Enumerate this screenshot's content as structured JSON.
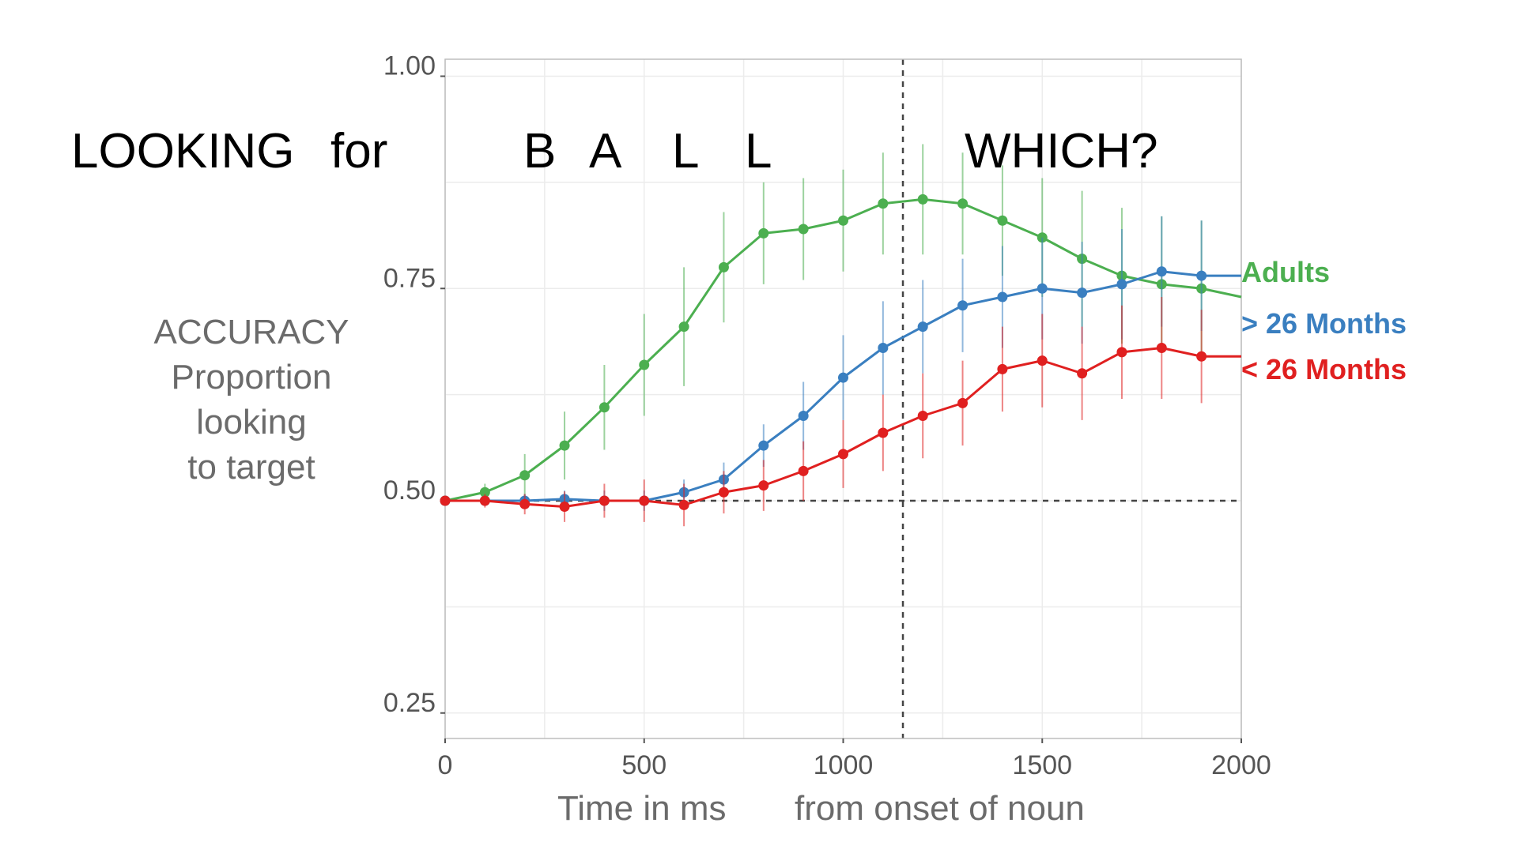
{
  "chart_data": {
    "type": "line",
    "xlim": [
      0,
      2000
    ],
    "ylim": [
      0.22,
      1.02
    ],
    "x_ticks": [
      0,
      500,
      1000,
      1500,
      2000
    ],
    "x_tick_labels": [
      "0",
      "500",
      "1000",
      "1500",
      "2000"
    ],
    "y_ticks": [
      0.25,
      0.5,
      0.75,
      1.0
    ],
    "y_tick_labels": [
      "0.25",
      "0.50",
      "0.75",
      "1.00"
    ],
    "xlabel": [
      "Time in ms",
      "from onset of noun"
    ],
    "ylabel": [
      "ACCURACY",
      "Proportion",
      "looking",
      "to target"
    ],
    "grid": true,
    "reference_lines": {
      "horizontal_y": 0.5,
      "vertical_x": 1150,
      "style": "dashed"
    },
    "annotations": [
      "LOOKING",
      "for",
      "B",
      "A",
      "L",
      "L",
      "WHICH?"
    ],
    "legend_position": "right",
    "series": [
      {
        "name": "Adults",
        "color": "#4caf50",
        "x": [
          0,
          100,
          200,
          300,
          400,
          500,
          600,
          700,
          800,
          900,
          1000,
          1100,
          1200,
          1300,
          1400,
          1500,
          1600,
          1700,
          1800,
          1900
        ],
        "y": [
          0.5,
          0.51,
          0.53,
          0.565,
          0.61,
          0.66,
          0.705,
          0.775,
          0.815,
          0.82,
          0.83,
          0.85,
          0.855,
          0.85,
          0.83,
          0.81,
          0.785,
          0.765,
          0.755,
          0.75
        ],
        "err": [
          0,
          0.01,
          0.025,
          0.04,
          0.05,
          0.06,
          0.07,
          0.065,
          0.06,
          0.06,
          0.06,
          0.06,
          0.065,
          0.06,
          0.065,
          0.07,
          0.08,
          0.08,
          0.08,
          0.08
        ],
        "line_end": 0.74
      },
      {
        "name": "> 26 Months",
        "color": "#3a7fc0",
        "x": [
          0,
          100,
          200,
          300,
          400,
          500,
          600,
          700,
          800,
          900,
          1000,
          1100,
          1200,
          1300,
          1400,
          1500,
          1600,
          1700,
          1800,
          1900
        ],
        "y": [
          0.5,
          0.5,
          0.5,
          0.502,
          0.5,
          0.5,
          0.51,
          0.525,
          0.565,
          0.6,
          0.645,
          0.68,
          0.705,
          0.73,
          0.74,
          0.75,
          0.745,
          0.755,
          0.77,
          0.765
        ],
        "err": [
          0,
          0.005,
          0.008,
          0.01,
          0.012,
          0.012,
          0.015,
          0.02,
          0.025,
          0.04,
          0.05,
          0.055,
          0.055,
          0.055,
          0.06,
          0.06,
          0.06,
          0.065,
          0.065,
          0.065
        ],
        "line_end": 0.765
      },
      {
        "name": "< 26 Months",
        "color": "#e02020",
        "x": [
          0,
          100,
          200,
          300,
          400,
          500,
          600,
          700,
          800,
          900,
          1000,
          1100,
          1200,
          1300,
          1400,
          1500,
          1600,
          1700,
          1800,
          1900
        ],
        "y": [
          0.5,
          0.5,
          0.496,
          0.493,
          0.5,
          0.5,
          0.495,
          0.51,
          0.518,
          0.535,
          0.555,
          0.58,
          0.6,
          0.615,
          0.655,
          0.665,
          0.65,
          0.675,
          0.68,
          0.67
        ],
        "err": [
          0,
          0.008,
          0.012,
          0.018,
          0.02,
          0.025,
          0.025,
          0.025,
          0.03,
          0.035,
          0.04,
          0.045,
          0.05,
          0.05,
          0.05,
          0.055,
          0.055,
          0.055,
          0.06,
          0.055
        ],
        "line_end": 0.67
      }
    ]
  }
}
